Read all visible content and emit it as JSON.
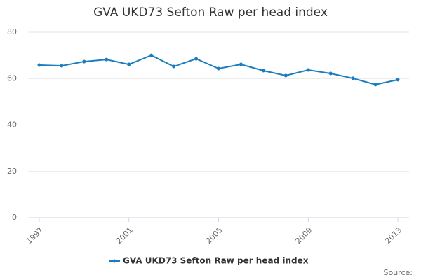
{
  "chart_data": {
    "type": "line",
    "title": "GVA UKD73 Sefton Raw per head index",
    "x": [
      1997,
      1998,
      1999,
      2000,
      2001,
      2002,
      2003,
      2004,
      2005,
      2006,
      2007,
      2008,
      2009,
      2010,
      2011,
      2012,
      2013
    ],
    "series": [
      {
        "name": "GVA UKD73 Sefton Raw per head index",
        "color": "#1a7dc0",
        "values": [
          65.8,
          65.5,
          67.3,
          68.2,
          66.1,
          70.0,
          65.2,
          68.5,
          64.3,
          66.1,
          63.4,
          61.3,
          63.7,
          62.2,
          60.1,
          57.4,
          59.5
        ]
      }
    ],
    "xlim": [
      1996.5,
      2013.5
    ],
    "xticks": [
      1997,
      2001,
      2005,
      2009,
      2013
    ],
    "ylim": [
      0,
      80
    ],
    "yticks": [
      0,
      20,
      40,
      60,
      80
    ],
    "grid": true,
    "legend": "bottom",
    "source": "Source:"
  }
}
